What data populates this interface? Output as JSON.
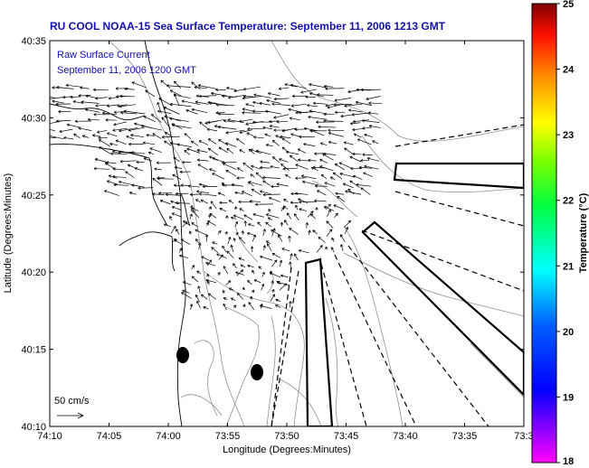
{
  "title": "RU COOL  NOAA-15  Sea Surface Temperature:  September 11, 2006 1213 GMT",
  "legend_text": {
    "line1": "Raw Surface Current",
    "line2": "September 11, 2006 1200 GMT"
  },
  "scale_label": "50 cm/s",
  "xlabel": "Longitude (Degrees:Minutes)",
  "ylabel": "Latitude (Degrees:Minutes)",
  "x_ticks": [
    "74:10",
    "74:05",
    "74:00",
    "73:55",
    "73:50",
    "73:45",
    "73:40",
    "73:35",
    "73:3"
  ],
  "y_ticks": [
    "40:35",
    "40:30",
    "40:25",
    "40:20",
    "40:15",
    "40:10"
  ],
  "colorbar": {
    "label": "Temperature (°C)",
    "ticks": [
      "25",
      "24",
      "23",
      "22",
      "21",
      "20",
      "19",
      "18"
    ],
    "range": [
      18,
      25
    ]
  },
  "colors": {
    "title": "#1010b0",
    "coast": "#000000",
    "bathymetry": "#909090"
  }
}
